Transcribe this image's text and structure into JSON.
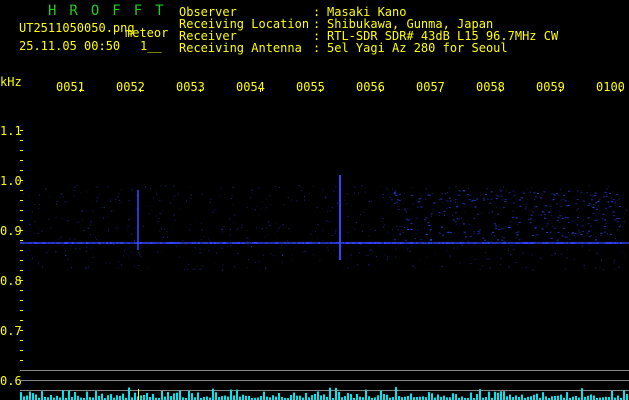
{
  "app": {
    "logo": "HROFFT",
    "filename": "UT2511050050.png",
    "mode": "meteor",
    "datetime": "25.11.05 00:50",
    "count": "1__"
  },
  "info": [
    {
      "label": "Observer",
      "value": "Masaki Kano"
    },
    {
      "label": "Receiving Location",
      "value": "Shibukawa, Gunma, Japan"
    },
    {
      "label": "Receiver",
      "value": "RTL-SDR SDR# 43dB L15 96.7MHz CW"
    },
    {
      "label": "Receiving Antenna",
      "value": "5el Yagi Az 280 for Seoul"
    }
  ],
  "axis": {
    "unit": "kHz",
    "time_labels": [
      "0051",
      "0052",
      "0053",
      "0054",
      "0055",
      "0056",
      "0057",
      "0058",
      "0059",
      "0100"
    ],
    "freq_labels": [
      "1.1",
      "1.0",
      "0.9",
      "0.8",
      "0.7",
      "0.6"
    ]
  },
  "colors": {
    "text": "#ffff00",
    "logo": "#22cc22",
    "signal": "#3344ff",
    "level": "#00e5ee",
    "grid": "#888888"
  }
}
